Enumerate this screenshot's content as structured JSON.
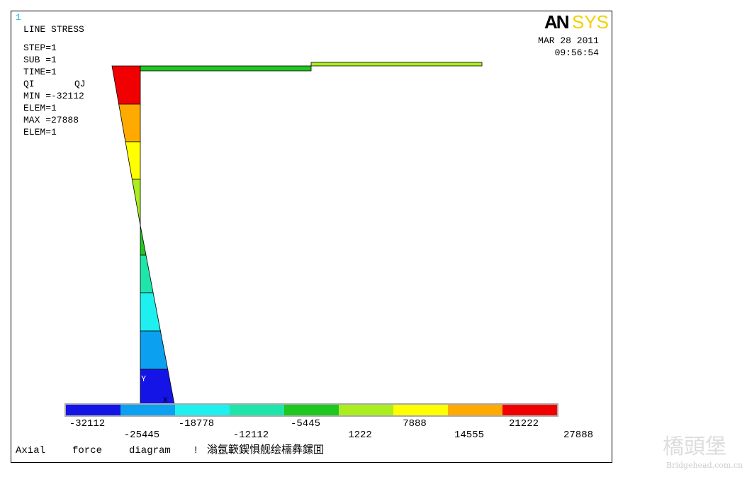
{
  "window_number": "1",
  "info": {
    "title": "LINE STRESS",
    "lines": [
      "STEP=1",
      "SUB =1",
      "TIME=1"
    ],
    "qi": "QI",
    "qj": "QJ",
    "min": "MIN =-32112",
    "min_elem": "ELEM=1",
    "max": "MAX =27888",
    "max_elem": "ELEM=1"
  },
  "logo": {
    "an": "AN",
    "sys": "SYS"
  },
  "date": "MAR 28 2011",
  "time": "09:56:54",
  "axes": {
    "y": "Y",
    "x": "X"
  },
  "legend": {
    "levels": [
      -32112,
      -25445,
      -18778,
      -12112,
      -5445,
      1222,
      7888,
      14555,
      21222,
      27888
    ],
    "colors": [
      "#1414e6",
      "#0ca0f0",
      "#1ef0f0",
      "#1ee6aa",
      "#1ec81e",
      "#aaee1e",
      "#ffff00",
      "#ffaa00",
      "#f00000"
    ]
  },
  "caption": [
    "Axial",
    "force",
    "diagram",
    "!",
    "滃氬簐鍥惧舰绘檽彝鏍囬"
  ],
  "watermark": {
    "main": "橋頭堡",
    "url": "Bridgehead.com.cn"
  }
}
